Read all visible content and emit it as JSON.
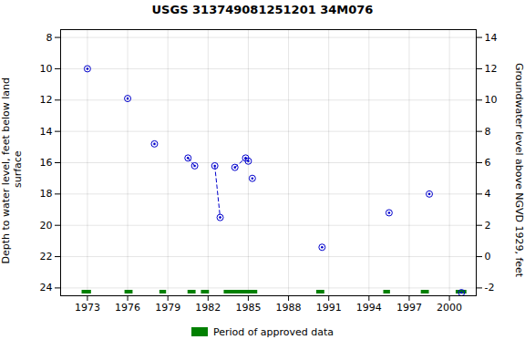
{
  "chart_data": {
    "type": "scatter",
    "title": "USGS 313749081251201 34M076",
    "ylabel": "Depth to water level, feet below land\n surface",
    "y2label": "Groundwater level above NGVD 1929, feet",
    "xlim": [
      1971.0,
      2002.0
    ],
    "xticks": [
      1973,
      1976,
      1979,
      1982,
      1985,
      1988,
      1991,
      1994,
      1997,
      2000
    ],
    "ylim": [
      24.5,
      7.5
    ],
    "yticks": [
      8,
      10,
      12,
      14,
      16,
      18,
      20,
      22,
      24
    ],
    "y2lim": [
      -2.5,
      14.5
    ],
    "y2ticks": [
      14,
      12,
      10,
      8,
      6,
      4,
      2,
      0,
      -2
    ],
    "grid": true,
    "legend": "lower center",
    "series": [
      {
        "type": "scatter",
        "marker": "circle",
        "color": "#0000cc",
        "x": [
          1973.0,
          1976.0,
          1978.0,
          1980.5,
          1981.0,
          1982.5,
          1982.9,
          1984.0,
          1984.8,
          1985.0,
          1985.3,
          1990.5,
          1995.5,
          1998.5,
          2000.9
        ],
        "values": [
          10.0,
          11.9,
          14.8,
          15.7,
          16.2,
          16.2,
          19.5,
          16.3,
          15.7,
          15.9,
          17.0,
          21.4,
          19.2,
          18.0,
          24.3
        ]
      },
      {
        "type": "line",
        "line_style": "dashed",
        "color": "#0000cc",
        "segments": [
          [
            [
              1980.5,
              15.7
            ],
            [
              1981.0,
              16.2
            ]
          ],
          [
            [
              1982.5,
              16.2
            ],
            [
              1982.9,
              19.5
            ]
          ],
          [
            [
              1984.0,
              16.3
            ],
            [
              1984.8,
              15.7
            ],
            [
              1985.0,
              15.9
            ]
          ]
        ]
      }
    ],
    "bands": {
      "name": "Period of approved data",
      "color": "#008000",
      "ranges": [
        [
          1972.6,
          1973.3
        ],
        [
          1975.8,
          1976.4
        ],
        [
          1978.4,
          1978.9
        ],
        [
          1980.5,
          1981.1
        ],
        [
          1981.5,
          1982.1
        ],
        [
          1983.2,
          1985.7
        ],
        [
          1990.1,
          1990.7
        ],
        [
          1995.1,
          1995.6
        ],
        [
          1997.9,
          1998.5
        ],
        [
          2000.5,
          2001.3
        ]
      ]
    }
  }
}
